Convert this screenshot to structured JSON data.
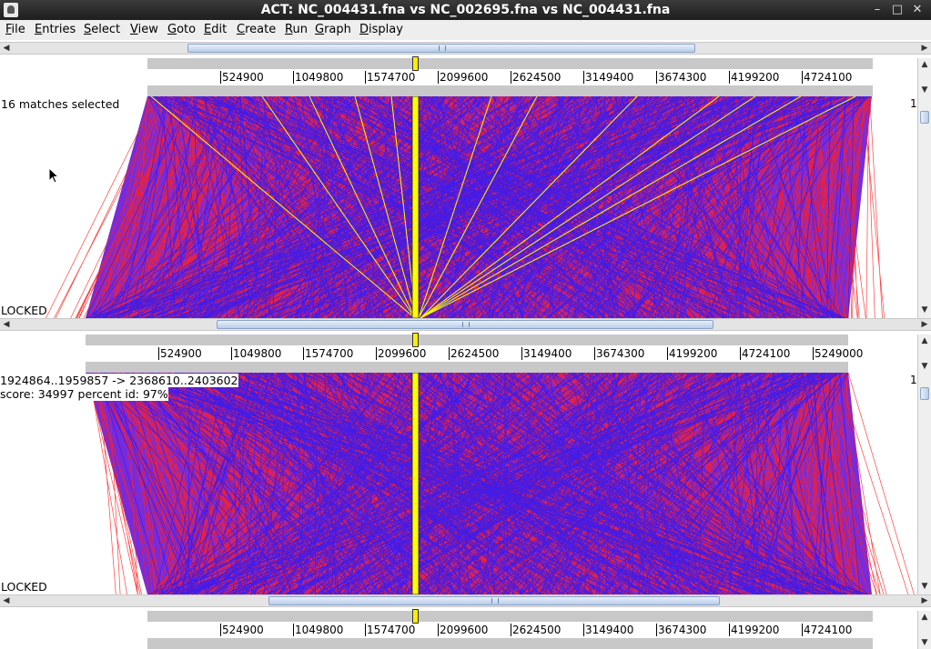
{
  "window": {
    "title": "ACT: NC_004431.fna vs NC_002695.fna vs NC_004431.fna",
    "minimize_glyph": "–",
    "maximize_glyph": "□",
    "close_glyph": "✕"
  },
  "menu": [
    {
      "key": "F",
      "rest": "ile"
    },
    {
      "key": "E",
      "rest": "ntries"
    },
    {
      "key": "S",
      "rest": "elect"
    },
    {
      "key": "V",
      "rest": "iew"
    },
    {
      "key": "G",
      "rest": "oto"
    },
    {
      "key": "E",
      "rest": "dit"
    },
    {
      "key": "C",
      "rest": "reate"
    },
    {
      "key": "R",
      "rest": "un"
    },
    {
      "key": "G",
      "rest": "raph"
    },
    {
      "key": "D",
      "rest": "isplay"
    }
  ],
  "rulers": {
    "top": [
      "524900",
      "1049800",
      "1574700",
      "2099600",
      "2624500",
      "3149400",
      "3674300",
      "4199200",
      "4724100"
    ],
    "middle": [
      "524900",
      "1049800",
      "1574700",
      "2099600",
      "2624500",
      "3149400",
      "3674300",
      "4199200",
      "4724100",
      "5249000"
    ],
    "bottom": [
      "524900",
      "1049800",
      "1574700",
      "2099600",
      "2624500",
      "3149400",
      "3674300",
      "4199200",
      "4724100"
    ]
  },
  "comparison1": {
    "status": "16 matches selected",
    "lock_label": "LOCKED",
    "side_number": "1"
  },
  "comparison2": {
    "match_range": "1924864..1959857 -> 2368610..2403602",
    "score_line": "score: 34997  percent id: 97%",
    "lock_label": "LOCKED",
    "side_number": "1"
  },
  "colors": {
    "forward_match": "#ff2020",
    "reverse_match": "#2a1aff",
    "selected_match": "#ffff00",
    "sequence_bar": "#c8c8c8"
  },
  "icons": {
    "scroll_left": "◀",
    "scroll_right": "▶",
    "scroll_up": "▲",
    "scroll_down": "▼"
  }
}
